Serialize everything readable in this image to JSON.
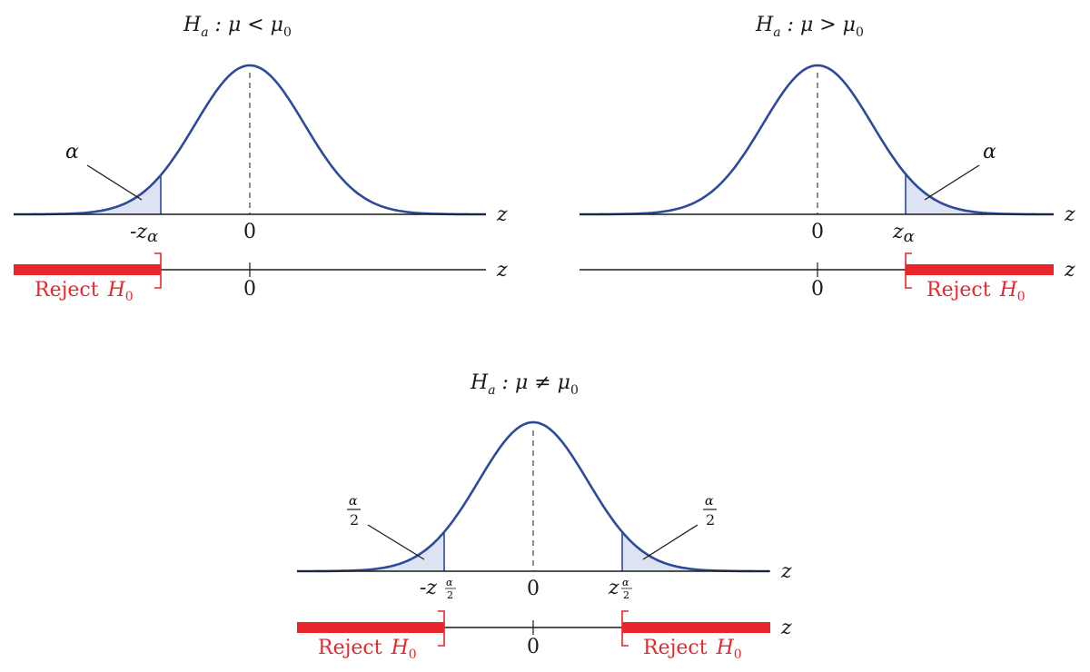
{
  "panels": {
    "left": {
      "title_main": "H",
      "title_sub": "a",
      "title_rel": " : μ < μ",
      "title_sub0": "0",
      "alpha_label": "α",
      "crit_prefix": "-z",
      "crit_sub": "α",
      "zero_label": "0",
      "z_label": "z",
      "z_label2": "z",
      "zero_label2": "0",
      "reject_text": "Reject",
      "reject_h": "H",
      "reject_sub": "0"
    },
    "right": {
      "title_main": "H",
      "title_sub": "a",
      "title_rel": " : μ > μ",
      "title_sub0": "0",
      "alpha_label": "α",
      "crit_prefix": "z",
      "crit_sub": "α",
      "zero_label": "0",
      "z_label": "z",
      "z_label2": "z",
      "zero_label2": "0",
      "reject_text": "Reject",
      "reject_h": "H",
      "reject_sub": "0"
    },
    "bottom": {
      "title_main": "H",
      "title_sub": "a",
      "title_rel": " : μ ≠ μ",
      "title_sub0": "0",
      "alpha_num": "α",
      "alpha_den": "2",
      "crit_left_prefix": "-z",
      "crit_right_prefix": "z",
      "crit_num": "α",
      "crit_den": "2",
      "zero_label": "0",
      "z_label": "z",
      "z_label2": "z",
      "zero_label2": "0",
      "reject_text": "Reject",
      "reject_h": "H",
      "reject_sub": "0"
    }
  },
  "colors": {
    "curve": "#2e4a9a",
    "tail_fill": "#dde3f3",
    "reject": "#e8262b"
  }
}
